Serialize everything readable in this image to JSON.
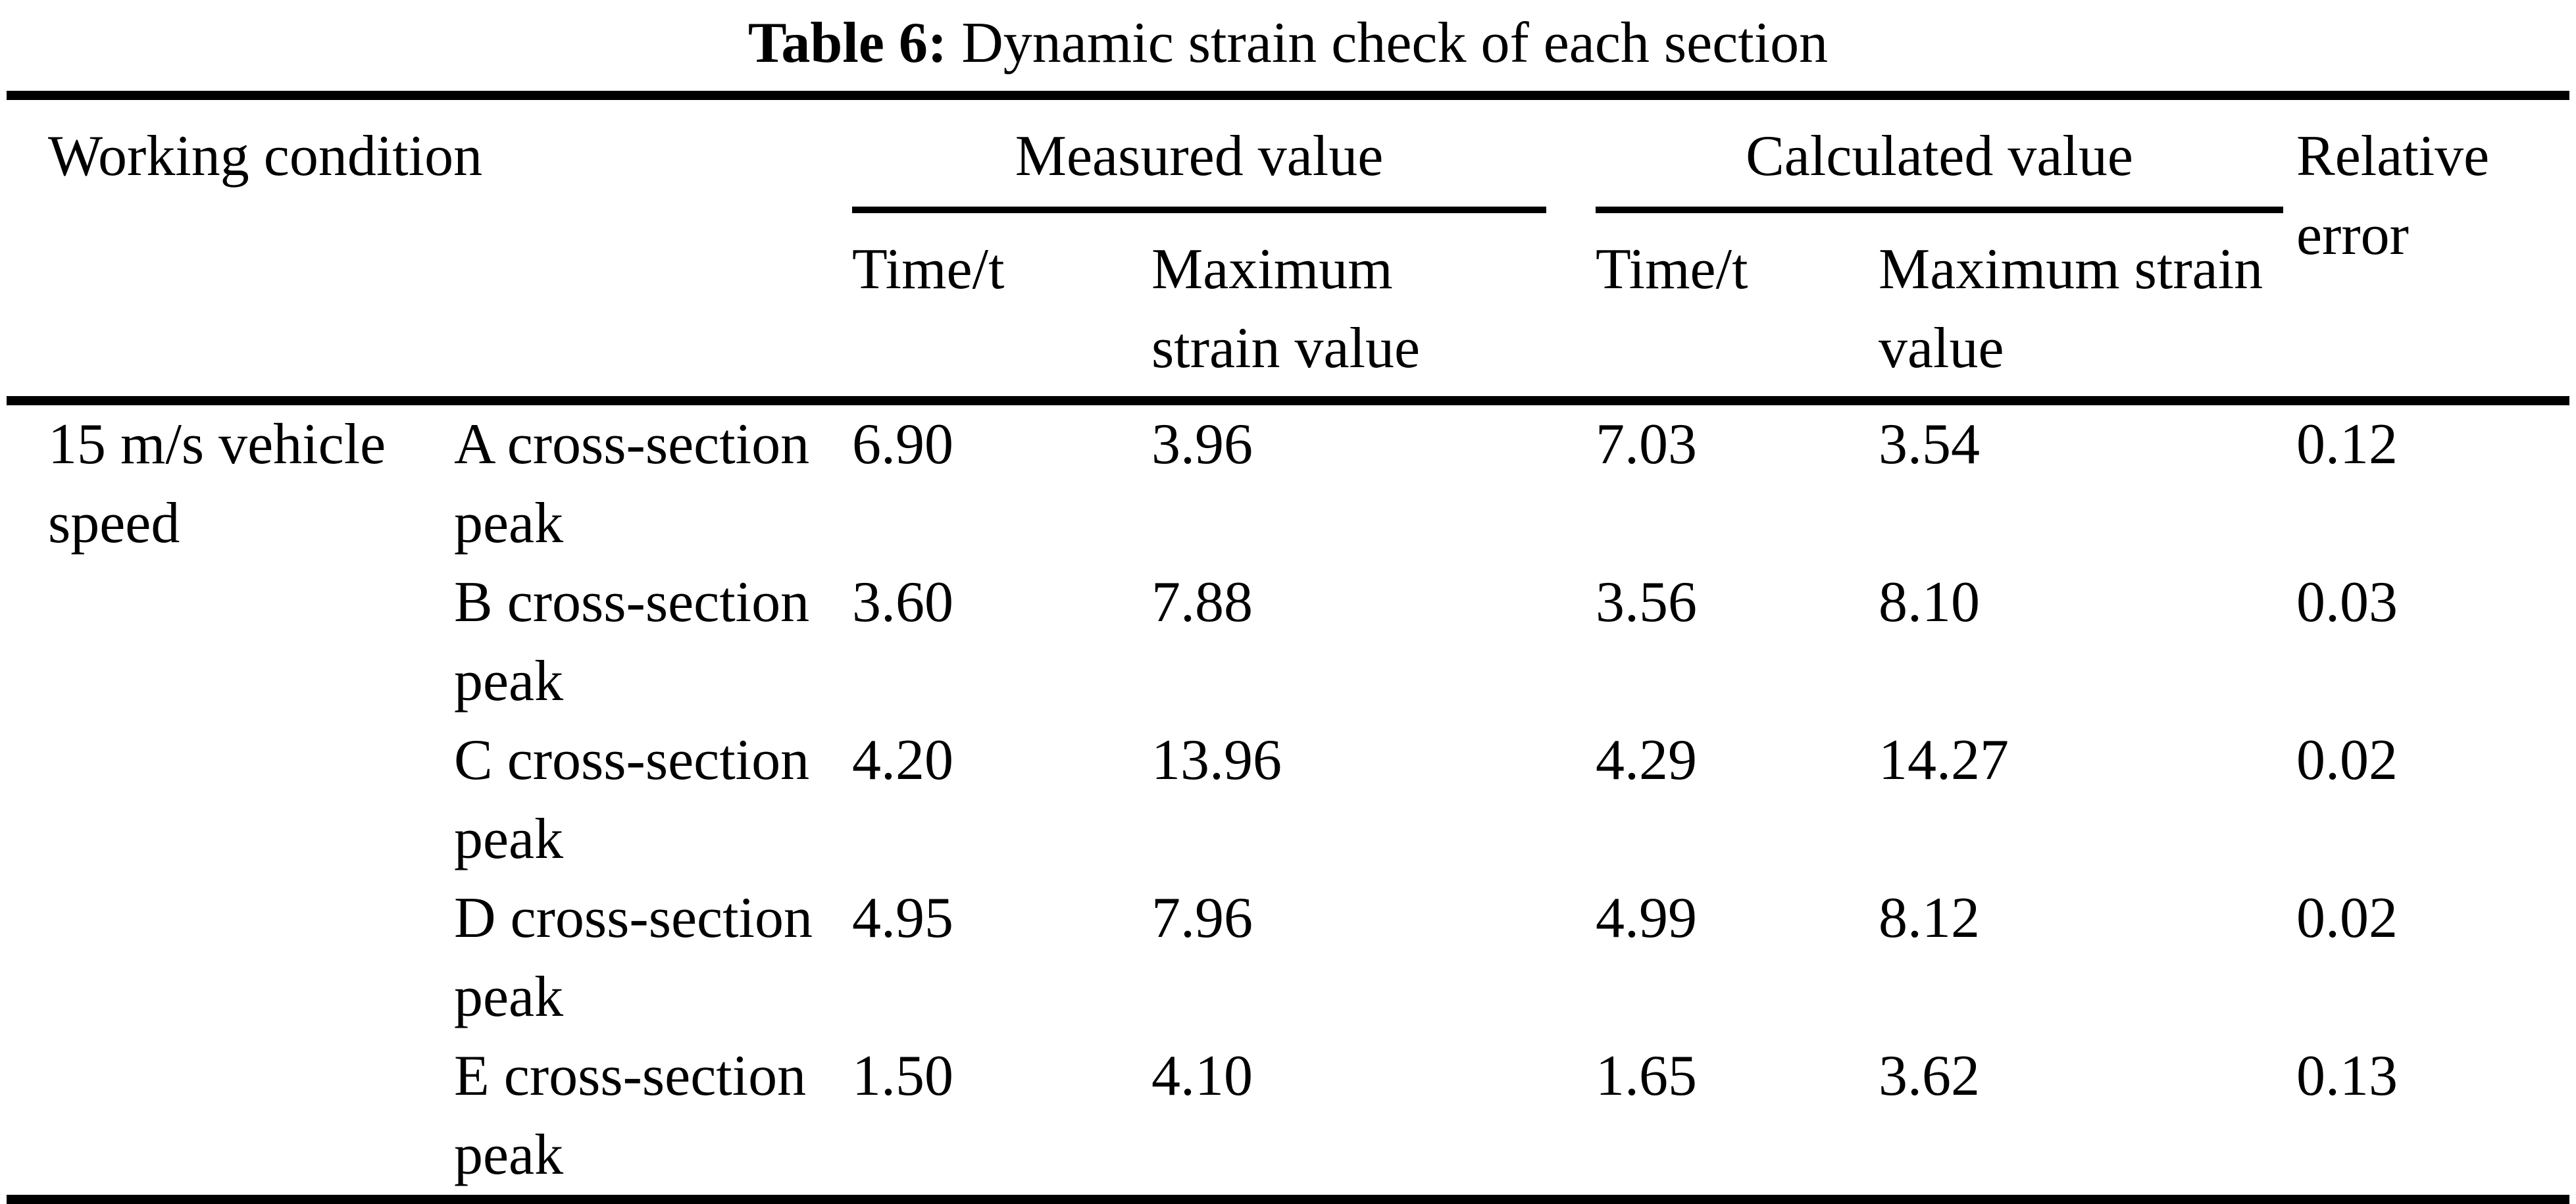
{
  "page": {
    "background_color": "#ffffff",
    "text_color": "#000000"
  },
  "title": {
    "label": "Table 6:",
    "caption": "Dynamic strain check of each section"
  },
  "table": {
    "headers": {
      "working_condition": "Working condition",
      "measured_group": "Measured value",
      "calculated_group": "Calculated value",
      "relative_error": "Relative error",
      "measured_time": "Time/t",
      "measured_max_strain": "Maximum strain value",
      "calculated_time": "Time/t",
      "calculated_max_strain": "Maximum strain value"
    },
    "working_condition": "15 m/s vehicle speed",
    "rows": [
      {
        "section": "A cross-section peak",
        "measured_time": "6.90",
        "measured_max_strain": "3.96",
        "calculated_time": "7.03",
        "calculated_max_strain": "3.54",
        "relative_error": "0.12"
      },
      {
        "section": "B cross-section peak",
        "measured_time": "3.60",
        "measured_max_strain": "7.88",
        "calculated_time": "3.56",
        "calculated_max_strain": "8.10",
        "relative_error": "0.03"
      },
      {
        "section": "C cross-section peak",
        "measured_time": "4.20",
        "measured_max_strain": "13.96",
        "calculated_time": "4.29",
        "calculated_max_strain": "14.27",
        "relative_error": "0.02"
      },
      {
        "section": "D cross-section peak",
        "measured_time": "4.95",
        "measured_max_strain": "7.96",
        "calculated_time": "4.99",
        "calculated_max_strain": "8.12",
        "relative_error": "0.02"
      },
      {
        "section": "E cross-section peak",
        "measured_time": "1.50",
        "measured_max_strain": "4.10",
        "calculated_time": "1.65",
        "calculated_max_strain": "3.62",
        "relative_error": "0.13"
      }
    ]
  }
}
